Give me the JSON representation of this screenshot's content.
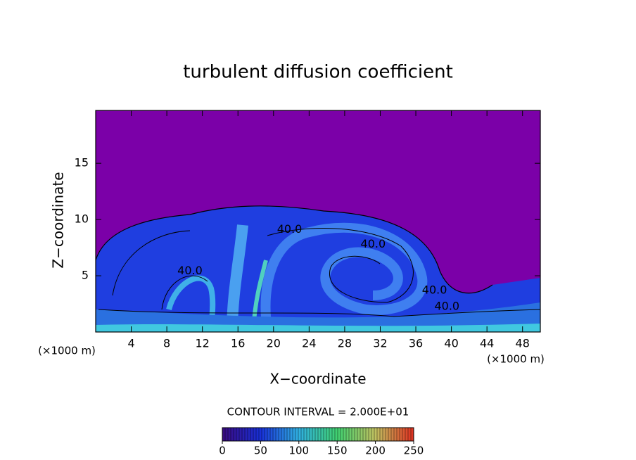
{
  "chart_data": {
    "type": "contour",
    "title": "turbulent diffusion coefficient",
    "xlabel": "X−coordinate",
    "ylabel": "Z−coordinate",
    "x_unit": "(×1000 m)",
    "y_unit": "(×1000 m)",
    "xlim": [
      0,
      50
    ],
    "ylim": [
      0,
      19.7
    ],
    "xticks": [
      4,
      8,
      12,
      16,
      20,
      24,
      28,
      32,
      36,
      40,
      44,
      48
    ],
    "yticks": [
      5,
      10,
      15
    ],
    "contour_interval_text": "CONTOUR INTERVAL = 2.000E+01",
    "contour_labels": [
      {
        "text": "40.0",
        "x": 21.8,
        "y": 9.1
      },
      {
        "text": "40.0",
        "x": 31.2,
        "y": 7.8
      },
      {
        "text": "40.0",
        "x": 10.6,
        "y": 5.4
      },
      {
        "text": "40.0",
        "x": 38.1,
        "y": 3.7
      },
      {
        "text": "40.0",
        "x": 39.5,
        "y": 2.25
      }
    ],
    "colorbar": {
      "lim": [
        0,
        250
      ],
      "ticks": [
        0,
        50,
        100,
        150,
        200,
        250
      ]
    }
  }
}
